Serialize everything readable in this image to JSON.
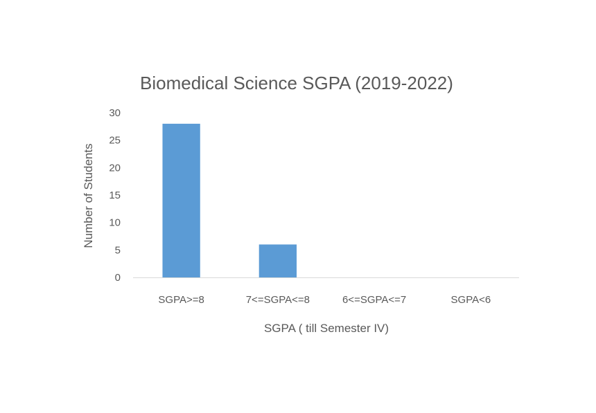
{
  "chart_data": {
    "type": "bar",
    "title": "Biomedical Science SGPA (2019-2022)",
    "xlabel": "SGPA ( till Semester IV)",
    "ylabel": "Number of Students",
    "categories": [
      "SGPA>=8",
      "7<=SGPA<=8",
      "6<=SGPA<=7",
      "SGPA<6"
    ],
    "values": [
      28,
      6,
      0,
      0
    ],
    "ylim": [
      0,
      30
    ],
    "yticks": [
      "0",
      "5",
      "10",
      "15",
      "20",
      "25",
      "30"
    ],
    "grid": false,
    "legend": "none",
    "bar_color": "#5b9bd5",
    "axis_line_color": "#d9d9d9",
    "text_color": "#595959"
  }
}
